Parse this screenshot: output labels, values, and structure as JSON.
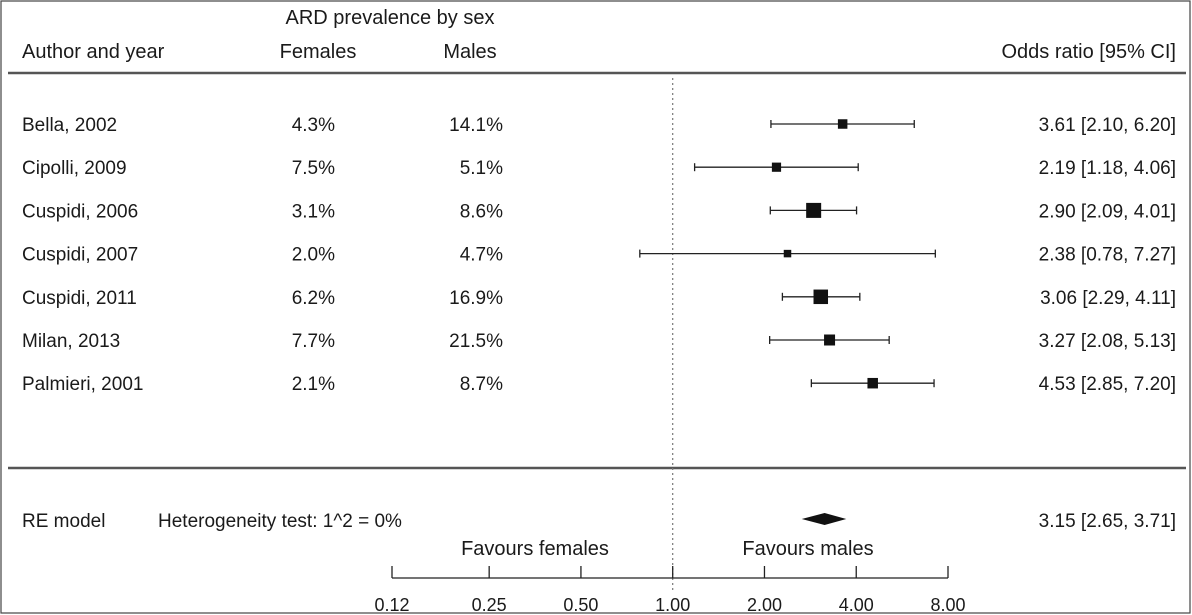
{
  "header": {
    "group_title": "ARD prevalence by sex",
    "col_author": "Author and year",
    "col_females": "Females",
    "col_males": "Males",
    "col_or": "Odds ratio [95% CI]"
  },
  "summary": {
    "label": "RE model",
    "heterogeneity": "Heterogeneity test: 1^2 = 0%",
    "or_text": "3.15 [2.65, 3.71]",
    "est": 3.15,
    "lo": 2.65,
    "hi": 3.71
  },
  "direction": {
    "left": "Favours females",
    "right": "Favours males"
  },
  "chart_data": {
    "type": "forest",
    "x_scale": "log",
    "xlim": [
      0.12,
      8.0
    ],
    "xticks": [
      0.12,
      0.25,
      0.5,
      1.0,
      2.0,
      4.0,
      8.0
    ],
    "xtick_labels": [
      "0.12",
      "0.25",
      "0.50",
      "1.00",
      "2.00",
      "4.00",
      "8.00"
    ],
    "reference_line": 1.0,
    "studies": [
      {
        "label": "Bella, 2002",
        "females": "4.3%",
        "males": "14.1%",
        "or": 3.61,
        "lo": 2.1,
        "hi": 6.2,
        "or_text": "3.61 [2.10, 6.20]",
        "weight": 0.45
      },
      {
        "label": "Cipolli, 2009",
        "females": "7.5%",
        "males": "5.1%",
        "or": 2.19,
        "lo": 1.18,
        "hi": 4.06,
        "or_text": "2.19 [1.18, 4.06]",
        "weight": 0.42
      },
      {
        "label": "Cuspidi, 2006",
        "females": "3.1%",
        "males": "8.6%",
        "or": 2.9,
        "lo": 2.09,
        "hi": 4.01,
        "or_text": "2.90 [2.09, 4.01]",
        "weight": 1.0
      },
      {
        "label": "Cuspidi, 2007",
        "females": "2.0%",
        "males": "4.7%",
        "or": 2.38,
        "lo": 0.78,
        "hi": 7.27,
        "or_text": "2.38 [0.78, 7.27]",
        "weight": 0.25
      },
      {
        "label": "Cuspidi, 2011",
        "females": "6.2%",
        "males": "16.9%",
        "or": 3.06,
        "lo": 2.29,
        "hi": 4.11,
        "or_text": "3.06 [2.29, 4.11]",
        "weight": 0.95
      },
      {
        "label": "Milan, 2013",
        "females": "7.7%",
        "males": "21.5%",
        "or": 3.27,
        "lo": 2.08,
        "hi": 5.13,
        "or_text": "3.27 [2.08, 5.13]",
        "weight": 0.6
      },
      {
        "label": "Palmieri, 2001",
        "females": "2.1%",
        "males": "8.7%",
        "or": 4.53,
        "lo": 2.85,
        "hi": 7.2,
        "or_text": "4.53 [2.85, 7.20]",
        "weight": 0.55
      }
    ]
  }
}
